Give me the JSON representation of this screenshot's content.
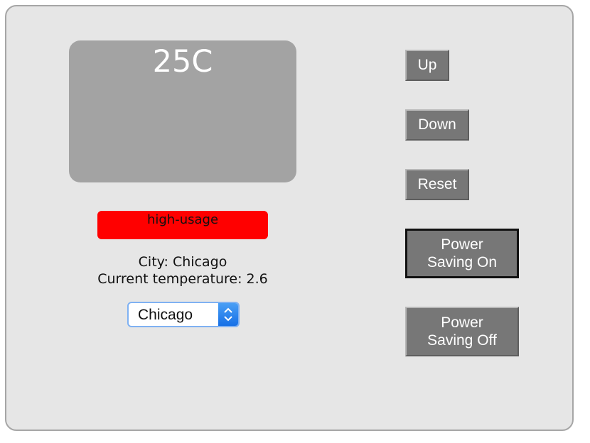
{
  "display": {
    "temperature": "25C"
  },
  "status": {
    "usage_label": "high-usage",
    "usage_color": "#ff0000"
  },
  "info": {
    "city_line": "City: Chicago",
    "current_temp_line": "Current temperature: 2.6"
  },
  "city_select": {
    "selected": "Chicago",
    "icon": "select-arrows-icon"
  },
  "buttons": {
    "up": "Up",
    "down": "Down",
    "reset": "Reset",
    "power_saving_on_line1": "Power",
    "power_saving_on_line2": "Saving On",
    "power_saving_off_line1": "Power",
    "power_saving_off_line2": "Saving Off"
  },
  "colors": {
    "panel_bg": "#e6e6e6",
    "display_bg": "#a3a3a3",
    "button_bg": "#777777",
    "accent": "#1670e6"
  }
}
